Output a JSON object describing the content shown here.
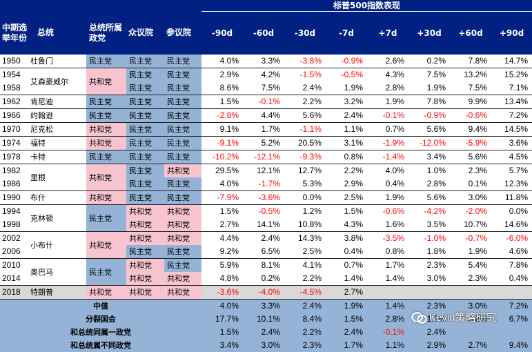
{
  "header": {
    "super_title": "标普500指数表现",
    "col_year": "中期选举年份",
    "col_president": "总统",
    "col_party": "总统所属政党",
    "col_house": "众议院",
    "col_senate": "参议院",
    "periods": [
      "-90d",
      "-60d",
      "-30d",
      "-7d",
      "+7d",
      "+30d",
      "+60d",
      "+90d"
    ]
  },
  "party_labels": {
    "dem": "民主党",
    "rep": "共和党"
  },
  "colors": {
    "header": "#002182",
    "democrat": "#95B3D7",
    "republican": "#F7C4D0",
    "negative": "#ff0000",
    "current_row": "#D9D9D9"
  },
  "groups": [
    {
      "president": "杜鲁门",
      "party": "dem",
      "rows": [
        {
          "year": "1950",
          "house": "dem",
          "senate": "dem",
          "values": [
            "4.0%",
            "3.3%",
            "-3.8%",
            "-0.9%",
            "2.6%",
            "0.2%",
            "7.8%",
            "14.7%"
          ]
        }
      ]
    },
    {
      "president": "艾森豪威尔",
      "party": "rep",
      "rows": [
        {
          "year": "1954",
          "house": "dem",
          "senate": "dem",
          "values": [
            "2.9%",
            "4.2%",
            "-1.5%",
            "-0.5%",
            "4.3%",
            "7.5%",
            "13.2%",
            "15.2%"
          ]
        },
        {
          "year": "1958",
          "house": "dem",
          "senate": "dem",
          "values": [
            "8.6%",
            "7.5%",
            "2.4%",
            "1.9%",
            "2.8%",
            "1.9%",
            "7.5%",
            "7.1%"
          ]
        }
      ]
    },
    {
      "president": "肯尼迪",
      "party": "dem",
      "rows": [
        {
          "year": "1962",
          "house": "dem",
          "senate": "dem",
          "values": [
            "1.5%",
            "-0.1%",
            "2.2%",
            "3.2%",
            "1.9%",
            "7.8%",
            "9.9%",
            "13.4%"
          ]
        }
      ]
    },
    {
      "president": "约翰逊",
      "party": "dem",
      "rows": [
        {
          "year": "1966",
          "house": "dem",
          "senate": "dem",
          "values": [
            "-2.8%",
            "4.4%",
            "5.6%",
            "2.4%",
            "-0.1%",
            "-0.9%",
            "-0.6%",
            "7.2%"
          ]
        }
      ]
    },
    {
      "president": "尼克松",
      "party": "rep",
      "rows": [
        {
          "year": "1970",
          "house": "dem",
          "senate": "dem",
          "values": [
            "9.1%",
            "1.7%",
            "-1.1%",
            "1.1%",
            "0.7%",
            "5.6%",
            "9.4%",
            "14.5%"
          ]
        }
      ]
    },
    {
      "president": "福特",
      "party": "rep",
      "rows": [
        {
          "year": "1974",
          "house": "dem",
          "senate": "dem",
          "values": [
            "-9.1%",
            "5.2%",
            "20.5%",
            "3.1%",
            "-1.9%",
            "-12.0%",
            "-5.9%",
            "3.6%"
          ]
        }
      ]
    },
    {
      "president": "卡特",
      "party": "dem",
      "rows": [
        {
          "year": "1978",
          "house": "dem",
          "senate": "dem",
          "values": [
            "-10.2%",
            "-12.1%",
            "-9.3%",
            "0.8%",
            "-1.4%",
            "3.4%",
            "5.6%",
            "4.5%"
          ]
        }
      ]
    },
    {
      "president": "里根",
      "party": "rep",
      "rows": [
        {
          "year": "1982",
          "house": "dem",
          "senate": "rep",
          "values": [
            "29.5%",
            "12.1%",
            "12.7%",
            "2.2%",
            "4.0%",
            "1.0%",
            "2.3%",
            "5.7%"
          ]
        },
        {
          "year": "1986",
          "house": "dem",
          "senate": "dem",
          "values": [
            "4.0%",
            "-1.7%",
            "5.3%",
            "2.9%",
            "0.4%",
            "2.8%",
            "0.1%",
            "12.3%"
          ]
        }
      ]
    },
    {
      "president": "布什",
      "party": "rep",
      "rows": [
        {
          "year": "1990",
          "house": "dem",
          "senate": "dem",
          "values": [
            "-7.9%",
            "-3.6%",
            "0.0%",
            "2.5%",
            "1.9%",
            "5.6%",
            "3.0%",
            "11.8%"
          ]
        }
      ]
    },
    {
      "president": "克林顿",
      "party": "dem",
      "rows": [
        {
          "year": "1994",
          "house": "rep",
          "senate": "rep",
          "values": [
            "1.5%",
            "-0.5%",
            "1.2%",
            "1.5%",
            "-0.6%",
            "-4.2%",
            "-2.0%",
            "0.0%"
          ]
        },
        {
          "year": "1998",
          "house": "rep",
          "senate": "rep",
          "values": [
            "2.7%",
            "14.1%",
            "10.8%",
            "4.3%",
            "1.6%",
            "3.5%",
            "10.7%",
            "14.6%"
          ]
        }
      ]
    },
    {
      "president": "小布什",
      "party": "rep",
      "rows": [
        {
          "year": "2002",
          "house": "rep",
          "senate": "rep",
          "values": [
            "4.4%",
            "2.4%",
            "14.3%",
            "3.8%",
            "-3.5%",
            "-1.0%",
            "-0.7%",
            "-6.0%"
          ]
        },
        {
          "year": "2006",
          "house": "dem",
          "senate": "dem",
          "values": [
            "9.2%",
            "6.5%",
            "2.5%",
            "0.4%",
            "0.8%",
            "1.8%",
            "1.9%",
            "4.6%"
          ]
        }
      ]
    },
    {
      "president": "奥巴马",
      "party": "dem",
      "rows": [
        {
          "year": "2010",
          "house": "rep",
          "senate": "dem",
          "values": [
            "5.9%",
            "8.1%",
            "4.1%",
            "0.7%",
            "1.7%",
            "2.3%",
            "5.4%",
            "7.8%"
          ]
        },
        {
          "year": "2014",
          "house": "rep",
          "senate": "rep",
          "values": [
            "4.8%",
            "0.2%",
            "2.2%",
            "1.4%",
            "1.4%",
            "3.0%",
            "2.3%",
            "0.4%"
          ]
        }
      ]
    },
    {
      "president": "特朗普",
      "party": "rep",
      "current": true,
      "rows": [
        {
          "year": "2018",
          "house": "rep",
          "senate": "rep",
          "values": [
            "-3.6%",
            "-4.0%",
            "-4.5%",
            "2.7%",
            "",
            "",
            "",
            ""
          ]
        }
      ]
    }
  ],
  "summary": [
    {
      "label": "中值",
      "values": [
        "4.0%",
        "3.3%",
        "2.4%",
        "1.9%",
        "1.4%",
        "2.3%",
        "3.0%",
        "7.2%"
      ]
    },
    {
      "label": "分裂国会",
      "values": [
        "17.7%",
        "10.1%",
        "8.4%",
        "1.5%",
        "2.8%",
        "1.7%",
        "3.8%",
        "6.7%"
      ]
    },
    {
      "label": "和总统同属一政党",
      "values": [
        "1.5%",
        "2.4%",
        "2.2%",
        "2.4%",
        "-0.1%",
        "2.4%",
        "",
        ""
      ]
    },
    {
      "label": "和总统属不同政党",
      "values": [
        "3.4%",
        "3.0%",
        "2.3%",
        "1.7%",
        "1.1%",
        "2.9%",
        "2.7%",
        "9.4%"
      ]
    }
  ],
  "watermark": {
    "icon": "wechat-icon",
    "text": "Kevin策略研究"
  }
}
